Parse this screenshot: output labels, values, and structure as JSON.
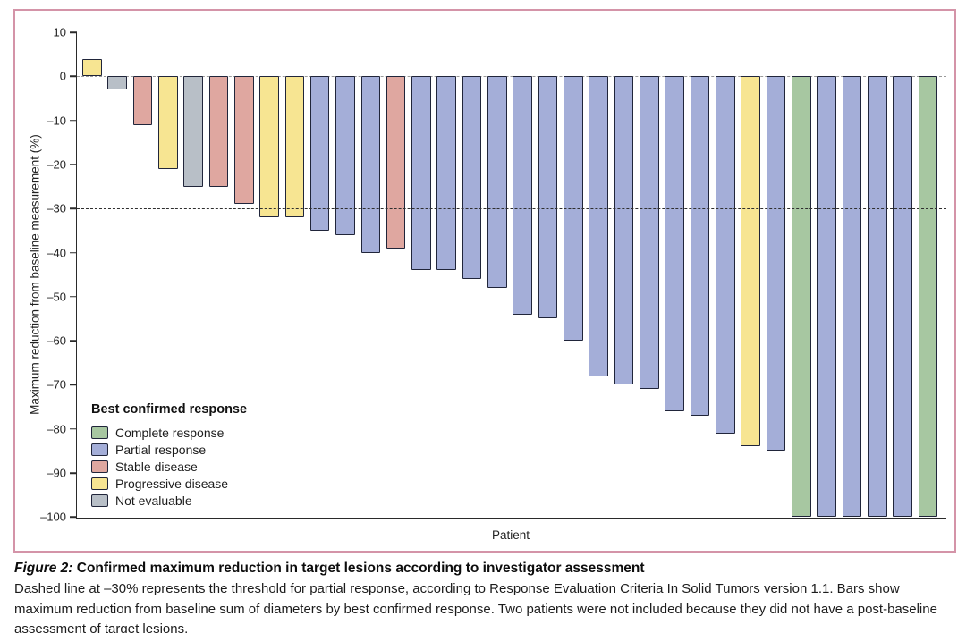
{
  "figure": {
    "caption_label": "Figure 2:",
    "caption_title": "Confirmed maximum reduction in target lesions according to investigator assessment",
    "caption_body": "Dashed line at –30% represents the threshold for partial response, according to Response Evaluation Criteria In Solid Tumors version 1.1. Bars show maximum reduction from baseline sum of diameters by best confirmed response. Two patients were not included because they did not have a post-baseline assessment of target lesions."
  },
  "colors": {
    "frame": "#d494a8",
    "bar_stroke": "#20253a",
    "responses": {
      "Complete response": "#a7c7a1",
      "Partial response": "#a4aed8",
      "Stable disease": "#dfa7a0",
      "Progressive disease": "#f7e592",
      "Not evaluable": "#b8bfc7"
    }
  },
  "legend": {
    "title": "Best confirmed response",
    "items": [
      {
        "label": "Complete response",
        "response": "Complete response"
      },
      {
        "label": "Partial response",
        "response": "Partial response"
      },
      {
        "label": "Stable disease",
        "response": "Stable disease"
      },
      {
        "label": "Progressive disease",
        "response": "Progressive disease"
      },
      {
        "label": "Not evaluable",
        "response": "Not evaluable"
      }
    ]
  },
  "chart_data": {
    "type": "bar",
    "title": "",
    "xlabel": "Patient",
    "ylabel": "Maximum reduction from baseline measurement (%)",
    "ylim": [
      -100,
      10
    ],
    "yticks": [
      10,
      0,
      -10,
      -20,
      -30,
      -40,
      -50,
      -60,
      -70,
      -80,
      -90,
      -100
    ],
    "grid": false,
    "legend_position": "lower-left",
    "reference_lines": [
      {
        "y": 0,
        "style": "dashed",
        "meaning": "baseline"
      },
      {
        "y": -30,
        "style": "dashed",
        "meaning": "partial response threshold (RECIST 1.1)"
      }
    ],
    "patients": [
      {
        "value": 4,
        "response": "Progressive disease"
      },
      {
        "value": -3,
        "response": "Not evaluable"
      },
      {
        "value": -11,
        "response": "Stable disease"
      },
      {
        "value": -21,
        "response": "Progressive disease"
      },
      {
        "value": -25,
        "response": "Not evaluable"
      },
      {
        "value": -25,
        "response": "Stable disease"
      },
      {
        "value": -29,
        "response": "Stable disease"
      },
      {
        "value": -32,
        "response": "Progressive disease"
      },
      {
        "value": -32,
        "response": "Progressive disease"
      },
      {
        "value": -35,
        "response": "Partial response"
      },
      {
        "value": -36,
        "response": "Partial response"
      },
      {
        "value": -40,
        "response": "Partial response"
      },
      {
        "value": -39,
        "response": "Stable disease"
      },
      {
        "value": -44,
        "response": "Partial response"
      },
      {
        "value": -44,
        "response": "Partial response"
      },
      {
        "value": -46,
        "response": "Partial response"
      },
      {
        "value": -48,
        "response": "Partial response"
      },
      {
        "value": -54,
        "response": "Partial response"
      },
      {
        "value": -55,
        "response": "Partial response"
      },
      {
        "value": -60,
        "response": "Partial response"
      },
      {
        "value": -68,
        "response": "Partial response"
      },
      {
        "value": -70,
        "response": "Partial response"
      },
      {
        "value": -71,
        "response": "Partial response"
      },
      {
        "value": -76,
        "response": "Partial response"
      },
      {
        "value": -77,
        "response": "Partial response"
      },
      {
        "value": -81,
        "response": "Partial response"
      },
      {
        "value": -84,
        "response": "Progressive disease"
      },
      {
        "value": -85,
        "response": "Partial response"
      },
      {
        "value": -100,
        "response": "Complete response"
      },
      {
        "value": -100,
        "response": "Partial response"
      },
      {
        "value": -100,
        "response": "Partial response"
      },
      {
        "value": -100,
        "response": "Partial response"
      },
      {
        "value": -100,
        "response": "Partial response"
      },
      {
        "value": -100,
        "response": "Complete response"
      }
    ]
  }
}
